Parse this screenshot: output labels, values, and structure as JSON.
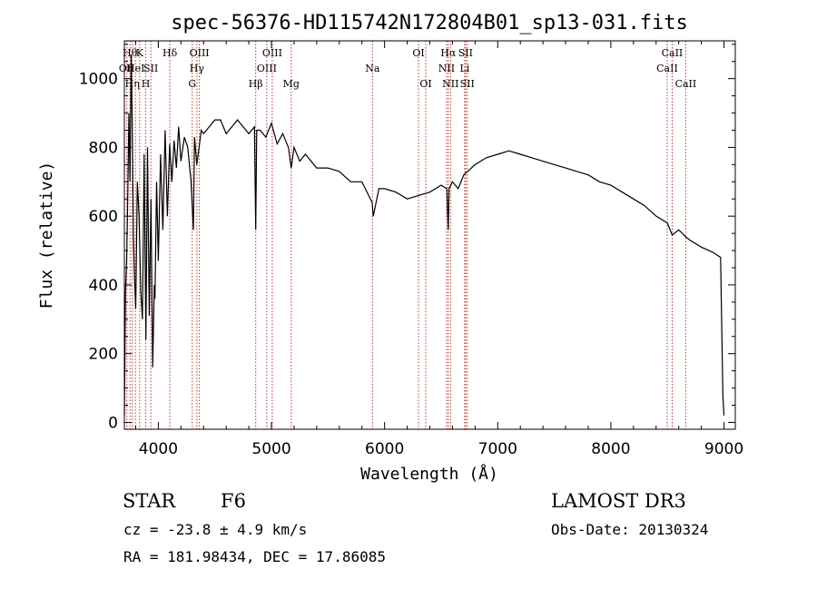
{
  "chart_data": {
    "type": "line",
    "title": "spec-56376-HD115742N172804B01_sp13-031.fits",
    "xlabel": "Wavelength (Å)",
    "ylabel": "Flux (relative)",
    "xlim": [
      3700,
      9100
    ],
    "ylim": [
      -20,
      1110
    ],
    "xticks": [
      4000,
      5000,
      6000,
      7000,
      8000,
      9000
    ],
    "yticks": [
      0,
      200,
      400,
      600,
      800,
      1000
    ],
    "grid": false,
    "series": [
      {
        "name": "spectrum",
        "x": [
          3700,
          3710,
          3720,
          3730,
          3740,
          3750,
          3760,
          3770,
          3780,
          3790,
          3800,
          3815,
          3830,
          3845,
          3860,
          3875,
          3890,
          3905,
          3920,
          3935,
          3950,
          3965,
          3970,
          3985,
          4000,
          4020,
          4040,
          4060,
          4080,
          4100,
          4120,
          4140,
          4160,
          4180,
          4200,
          4230,
          4260,
          4290,
          4310,
          4320,
          4340,
          4360,
          4380,
          4400,
          4450,
          4500,
          4550,
          4600,
          4650,
          4700,
          4750,
          4800,
          4850,
          4861,
          4870,
          4900,
          4950,
          5000,
          5050,
          5100,
          5150,
          5175,
          5200,
          5250,
          5300,
          5400,
          5500,
          5600,
          5700,
          5800,
          5890,
          5900,
          5950,
          6000,
          6100,
          6200,
          6300,
          6400,
          6500,
          6550,
          6563,
          6570,
          6600,
          6650,
          6700,
          6800,
          6900,
          7000,
          7100,
          7200,
          7300,
          7400,
          7500,
          7600,
          7700,
          7800,
          7900,
          8000,
          8100,
          8200,
          8300,
          8400,
          8500,
          8542,
          8600,
          8662,
          8700,
          8800,
          8900,
          8970,
          8990,
          9000
        ],
        "y": [
          20,
          380,
          470,
          650,
          900,
          700,
          1070,
          860,
          540,
          420,
          330,
          700,
          600,
          380,
          300,
          780,
          240,
          800,
          310,
          650,
          160,
          400,
          360,
          700,
          470,
          780,
          560,
          850,
          600,
          810,
          700,
          820,
          740,
          860,
          760,
          830,
          800,
          700,
          560,
          830,
          750,
          800,
          850,
          840,
          860,
          880,
          880,
          840,
          860,
          880,
          860,
          840,
          860,
          560,
          850,
          850,
          830,
          870,
          810,
          840,
          800,
          740,
          800,
          760,
          780,
          740,
          740,
          730,
          700,
          700,
          640,
          600,
          680,
          680,
          670,
          650,
          660,
          670,
          690,
          680,
          560,
          680,
          700,
          680,
          720,
          750,
          770,
          780,
          790,
          780,
          770,
          760,
          750,
          740,
          730,
          720,
          700,
          690,
          670,
          650,
          630,
          600,
          580,
          545,
          560,
          540,
          530,
          510,
          495,
          480,
          80,
          20
        ]
      }
    ],
    "line_labels": [
      {
        "x": 3722,
        "label": "OII",
        "row": 2
      },
      {
        "x": 3750,
        "label": "Hθ",
        "row": 1
      },
      {
        "x": 3770,
        "label": "Hη",
        "row": 3
      },
      {
        "x": 3798,
        "label": "HeI",
        "row": 2
      },
      {
        "x": 3835,
        "label": "K",
        "row": 1
      },
      {
        "x": 3889,
        "label": "H",
        "row": 3
      },
      {
        "x": 3934,
        "label": "SII",
        "row": 2
      },
      {
        "x": 4102,
        "label": "Hδ",
        "row": 1
      },
      {
        "x": 4300,
        "label": "G",
        "row": 3
      },
      {
        "x": 4341,
        "label": "Hγ",
        "row": 2
      },
      {
        "x": 4363,
        "label": "OIII",
        "row": 1
      },
      {
        "x": 4861,
        "label": "Hβ",
        "row": 3
      },
      {
        "x": 4959,
        "label": "OIII",
        "row": 2
      },
      {
        "x": 5007,
        "label": "OIII",
        "row": 1
      },
      {
        "x": 5175,
        "label": "Mg",
        "row": 3
      },
      {
        "x": 5893,
        "label": "Na",
        "row": 2
      },
      {
        "x": 6300,
        "label": "OI",
        "row": 1
      },
      {
        "x": 6364,
        "label": "OI",
        "row": 3
      },
      {
        "x": 6548,
        "label": "NII",
        "row": 2
      },
      {
        "x": 6563,
        "label": "Hα",
        "row": 1
      },
      {
        "x": 6583,
        "label": "NII",
        "row": 3
      },
      {
        "x": 6708,
        "label": "Li",
        "row": 2
      },
      {
        "x": 6716,
        "label": "SII",
        "row": 1
      },
      {
        "x": 6731,
        "label": "SII",
        "row": 3
      },
      {
        "x": 8498,
        "label": "CaII",
        "row": 2
      },
      {
        "x": 8542,
        "label": "CaII",
        "row": 1
      },
      {
        "x": 8662,
        "label": "CaII",
        "row": 3
      }
    ]
  },
  "info": {
    "class": "STAR",
    "subclass": "F6",
    "survey": "LAMOST DR3",
    "cz": "cz = -23.8 ± 4.9 km/s",
    "obs_date": "Obs-Date: 20130324",
    "coords": "RA = 181.98434, DEC =  17.86085"
  }
}
